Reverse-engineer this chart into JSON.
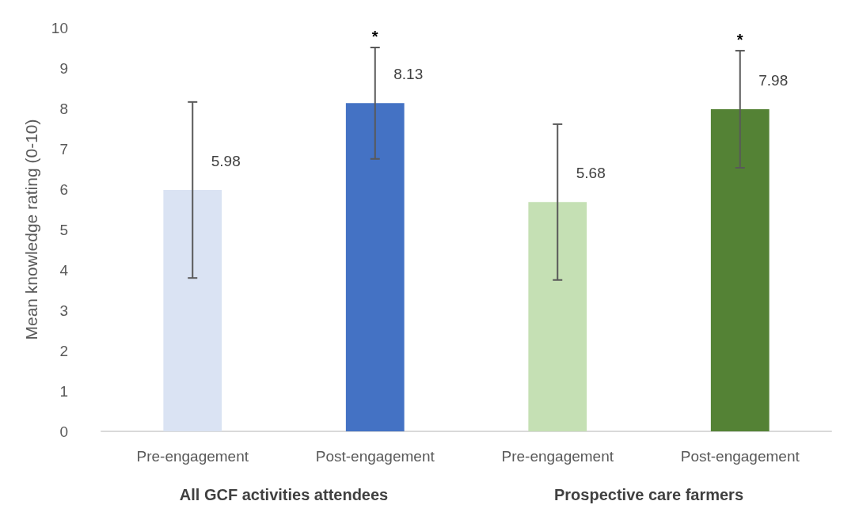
{
  "chart_data": {
    "type": "bar",
    "ylabel": "Mean knowledge rating (0-10)",
    "categories": [
      "Pre-engagement",
      "Post-engagement",
      "Pre-engagement",
      "Post-engagement"
    ],
    "values": [
      5.98,
      8.13,
      5.68,
      7.98
    ],
    "colors": [
      "#dae3f3",
      "#4472c4",
      "#c5e0b4",
      "#548235"
    ],
    "errors": [
      2.18,
      1.38,
      1.93,
      1.45
    ],
    "data_labels": true,
    "ylim": [
      0,
      10
    ],
    "yticks": [
      0,
      1,
      2,
      3,
      4,
      5,
      6,
      7,
      8,
      9,
      10
    ],
    "grid": false,
    "annotations": [
      "All GCF activities attendees",
      "Prospective care farmers",
      "*",
      "*"
    ]
  }
}
